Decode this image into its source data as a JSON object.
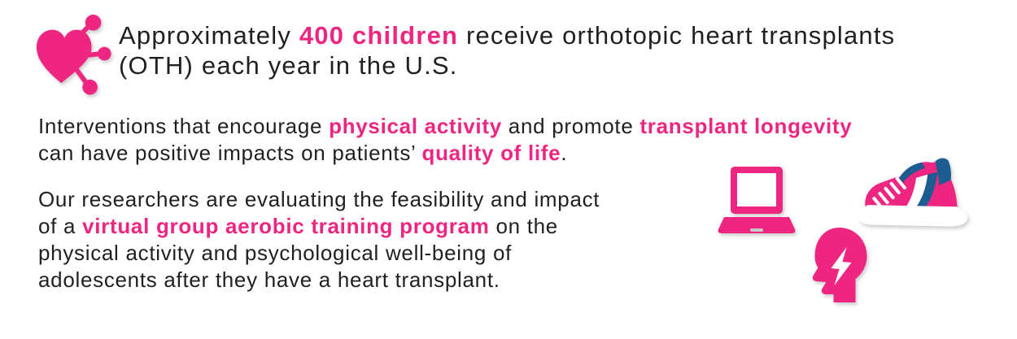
{
  "colors": {
    "pink": "#ee2581",
    "dark": "#231f20",
    "blue": "#1d5c90",
    "gray": "#c8c8c8",
    "background": "#ffffff"
  },
  "headline": {
    "segments": [
      {
        "text": "Approximately ",
        "pink": false
      },
      {
        "text": "400 children",
        "pink": true
      },
      {
        "text": " receive orthotopic heart transplants",
        "pink": false
      },
      {
        "br": true
      },
      {
        "text": "(OTH) each year in the U.S.",
        "pink": false
      }
    ]
  },
  "paragraphs": [
    {
      "segments": [
        {
          "text": "Interventions that encourage ",
          "pink": false
        },
        {
          "text": "physical activity",
          "pink": true
        },
        {
          "text": " and promote ",
          "pink": false
        },
        {
          "text": "transplant longevity",
          "pink": true
        },
        {
          "br": true
        },
        {
          "text": "can have positive impacts on patients’ ",
          "pink": false
        },
        {
          "text": "quality of life",
          "pink": true
        },
        {
          "text": ".",
          "pink": false
        }
      ]
    },
    {
      "segments": [
        {
          "text": "Our researchers are evaluating the feasibility and impact",
          "pink": false
        },
        {
          "br": true
        },
        {
          "text": "of a ",
          "pink": false
        },
        {
          "text": "virtual group aerobic training program",
          "pink": true
        },
        {
          "text": " on the",
          "pink": false
        },
        {
          "br": true
        },
        {
          "text": "physical activity and psychological well-being of",
          "pink": false
        },
        {
          "br": true
        },
        {
          "text": "adolescents after they have a heart transplant.",
          "pink": false
        }
      ]
    }
  ],
  "icons": [
    {
      "name": "heart-network-icon",
      "meaning": "heart with network connections"
    },
    {
      "name": "laptop-icon",
      "meaning": "laptop computer"
    },
    {
      "name": "sneaker-icon",
      "meaning": "running shoe"
    },
    {
      "name": "head-lightning-icon",
      "meaning": "head silhouette with lightning bolt"
    }
  ]
}
